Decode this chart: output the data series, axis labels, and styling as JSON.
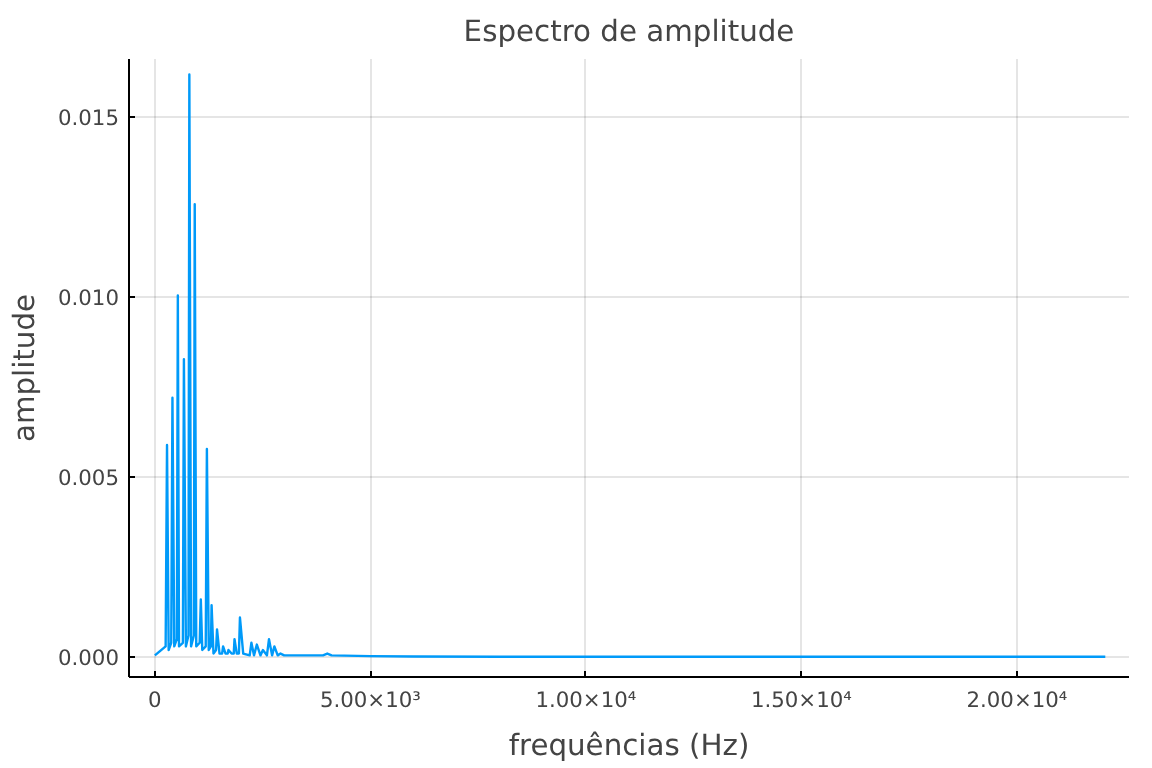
{
  "chart_data": {
    "type": "line",
    "title": "Espectro de amplitude",
    "xlabel": "frequências (Hz)",
    "ylabel": "amplitude",
    "x": [
      0,
      250,
      282,
      320,
      380,
      408,
      450,
      510,
      533,
      560,
      650,
      674,
      720,
      780,
      800,
      840,
      905,
      925,
      960,
      1040,
      1066,
      1100,
      1180,
      1207,
      1250,
      1300,
      1316,
      1360,
      1420,
      1442,
      1500,
      1560,
      1583,
      1640,
      1690,
      1707,
      1780,
      1830,
      1848,
      1900,
      1950,
      1974,
      2050,
      2200,
      2240,
      2300,
      2366,
      2450,
      2507,
      2600,
      2648,
      2720,
      2773,
      2850,
      2915,
      3000,
      3500,
      3900,
      4000,
      4100,
      5000,
      6000,
      8000,
      12000,
      16000,
      20000,
      22050
    ],
    "series": [
      {
        "color": "#009af9",
        "values": [
          5e-05,
          0.0003,
          0.00589,
          0.0002,
          0.0004,
          0.0072,
          0.0003,
          0.0005,
          0.01004,
          0.0003,
          0.0004,
          0.00827,
          0.0003,
          0.0006,
          0.01617,
          0.0003,
          0.0006,
          0.01257,
          0.0003,
          0.0004,
          0.0016,
          0.0002,
          0.0003,
          0.00578,
          0.0002,
          0.0003,
          0.00144,
          0.0001,
          0.0002,
          0.00077,
          0.0001,
          0.0001,
          0.0003,
          0.0001,
          0.0001,
          0.0002,
          0.0001,
          0.0001,
          0.0005,
          0.0001,
          0.0001,
          0.0011,
          0.0001,
          5e-05,
          0.0004,
          5e-05,
          0.00035,
          5e-05,
          0.0002,
          5e-05,
          0.0005,
          5e-05,
          0.0003,
          5e-05,
          0.0001,
          5e-05,
          5e-05,
          5e-05,
          0.0001,
          5e-05,
          3e-05,
          2e-05,
          1e-05,
          1e-05,
          1e-05,
          1e-05,
          1e-05
        ]
      }
    ],
    "xlim": [
      -600,
      22600
    ],
    "ylim": [
      -0.00055,
      0.0166
    ],
    "xticks": [
      0,
      {
        "value": 5000,
        "label": "5.00×10³"
      },
      {
        "value": 10000,
        "label": "1.00×10⁴"
      },
      {
        "value": 15000,
        "label": "1.50×10⁴"
      },
      {
        "value": 20000,
        "label": "2.00×10⁴"
      }
    ],
    "yticks": [
      {
        "value": 0,
        "label": "0.000"
      },
      {
        "value": 0.005,
        "label": "0.005"
      },
      {
        "value": 0.01,
        "label": "0.010"
      },
      {
        "value": 0.015,
        "label": "0.015"
      }
    ],
    "grid": true,
    "line_style": "solid"
  }
}
